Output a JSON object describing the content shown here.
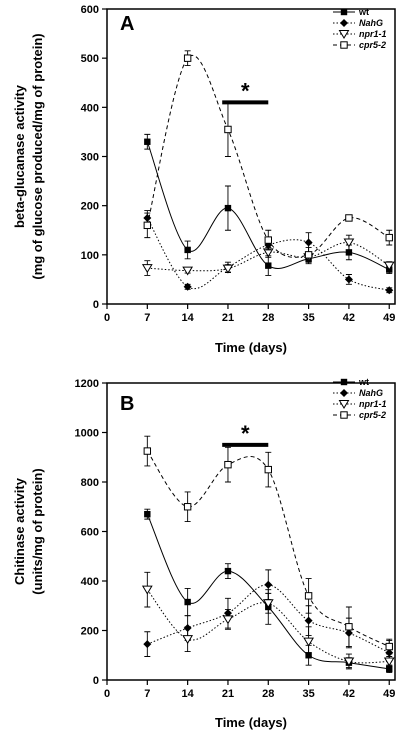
{
  "chart_data": [
    {
      "type": "line",
      "panel_label": "A",
      "xlabel": "Time (days)",
      "ylabel_line1": "beta-glucanase activity",
      "ylabel_line2": "(mg of glucose produced/mg of protein)",
      "xlim": [
        0,
        50
      ],
      "ylim": [
        0,
        600
      ],
      "xticks": [
        0,
        7,
        14,
        21,
        28,
        35,
        42,
        49
      ],
      "yticks": [
        0,
        100,
        200,
        300,
        400,
        500,
        600
      ],
      "x": [
        7,
        14,
        21,
        28,
        35,
        42,
        49
      ],
      "series": [
        {
          "name": "wt",
          "marker": "filled-square",
          "dash": "solid",
          "values": [
            330,
            110,
            195,
            78,
            92,
            105,
            70
          ],
          "errors": [
            15,
            18,
            45,
            20,
            10,
            15,
            8
          ]
        },
        {
          "name": "NahG",
          "marker": "filled-diamond",
          "dash": "dot",
          "values": [
            175,
            35,
            75,
            120,
            125,
            50,
            28
          ],
          "errors": [
            15,
            5,
            10,
            15,
            20,
            10,
            5
          ]
        },
        {
          "name": "npr1-1",
          "marker": "open-triangle-down",
          "dash": "dot",
          "values": [
            73,
            68,
            72,
            105,
            95,
            125,
            78
          ],
          "errors": [
            15,
            5,
            8,
            10,
            10,
            15,
            8
          ]
        },
        {
          "name": "cpr5-2",
          "marker": "open-square",
          "dash": "dash",
          "values": [
            160,
            500,
            355,
            130,
            100,
            175,
            135
          ],
          "errors": [
            25,
            15,
            55,
            20,
            15,
            5,
            15
          ]
        }
      ],
      "significance": {
        "label": "*",
        "x_start": 20,
        "x_end": 28,
        "y": 410
      }
    },
    {
      "type": "line",
      "panel_label": "B",
      "xlabel": "Time (days)",
      "ylabel_line1": "Chitinase activity",
      "ylabel_line2": "(units/mg of protein)",
      "xlim": [
        0,
        50
      ],
      "ylim": [
        0,
        1200
      ],
      "xticks": [
        0,
        7,
        14,
        21,
        28,
        35,
        42,
        49
      ],
      "yticks": [
        0,
        200,
        400,
        600,
        800,
        1000,
        1200
      ],
      "x": [
        7,
        14,
        21,
        28,
        35,
        42,
        49
      ],
      "series": [
        {
          "name": "wt",
          "marker": "filled-square",
          "dash": "solid",
          "values": [
            670,
            315,
            440,
            295,
            100,
            70,
            45
          ],
          "errors": [
            20,
            55,
            30,
            70,
            40,
            20,
            15
          ]
        },
        {
          "name": "NahG",
          "marker": "filled-diamond",
          "dash": "dot",
          "values": [
            145,
            210,
            270,
            385,
            240,
            190,
            110
          ],
          "errors": [
            50,
            50,
            60,
            60,
            60,
            60,
            50
          ]
        },
        {
          "name": "npr1-1",
          "marker": "open-triangle-down",
          "dash": "dot",
          "values": [
            365,
            165,
            245,
            310,
            155,
            75,
            75
          ],
          "errors": [
            70,
            50,
            40,
            40,
            60,
            30,
            20
          ]
        },
        {
          "name": "cpr5-2",
          "marker": "open-square",
          "dash": "dash",
          "values": [
            925,
            700,
            870,
            850,
            340,
            215,
            135
          ],
          "errors": [
            60,
            60,
            70,
            70,
            70,
            80,
            30
          ]
        }
      ],
      "significance": {
        "label": "*",
        "x_start": 20,
        "x_end": 28,
        "y": 950
      }
    }
  ]
}
